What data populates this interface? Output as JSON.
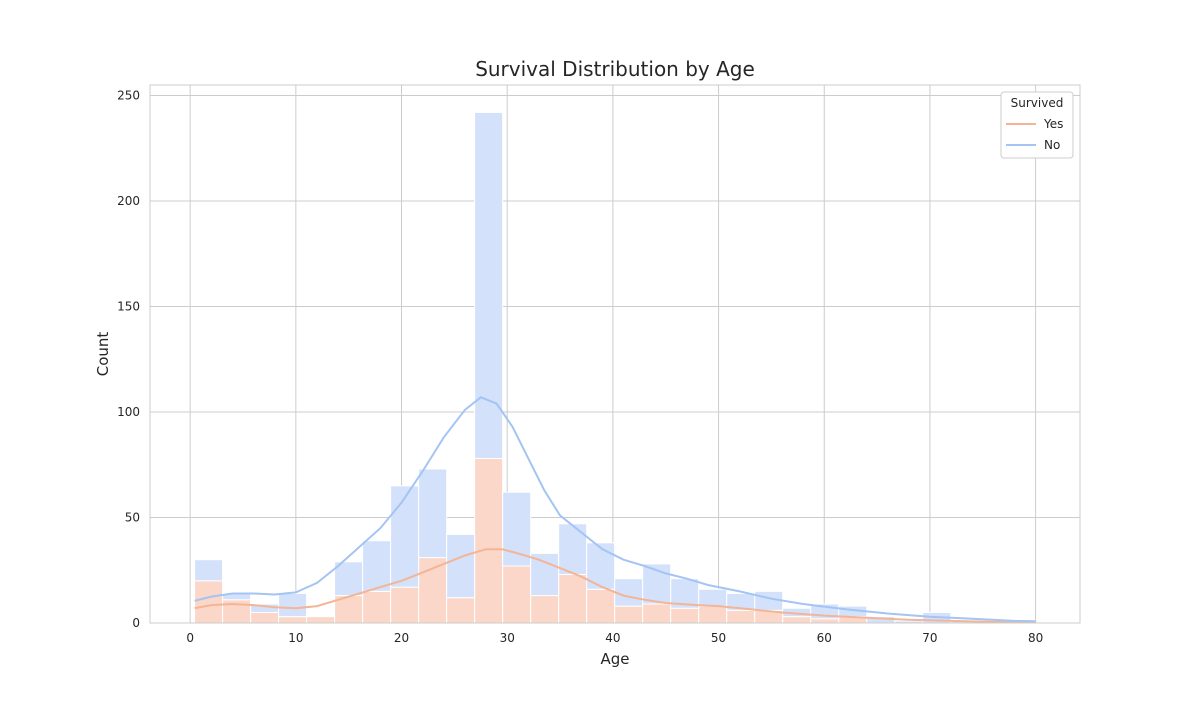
{
  "chart_data": {
    "type": "bar",
    "title": "Survival Distribution by Age",
    "xlabel": "Age",
    "ylabel": "Count",
    "xlim": [
      -3.8,
      84.2
    ],
    "ylim": [
      0,
      255
    ],
    "xticks": [
      0,
      10,
      20,
      30,
      40,
      50,
      60,
      70,
      80
    ],
    "yticks": [
      0,
      50,
      100,
      150,
      200,
      250
    ],
    "grid": true,
    "stacked": true,
    "bin_width": 2.65,
    "bin_edges_start": 0.42,
    "bins": [
      {
        "x0": 0.42,
        "x1": 3.07,
        "yes": 20,
        "no": 10
      },
      {
        "x0": 3.07,
        "x1": 5.72,
        "yes": 11,
        "no": 3
      },
      {
        "x0": 5.72,
        "x1": 8.37,
        "yes": 5,
        "no": 4
      },
      {
        "x0": 8.37,
        "x1": 11.02,
        "yes": 3,
        "no": 11
      },
      {
        "x0": 11.02,
        "x1": 13.67,
        "yes": 3,
        "no": 0
      },
      {
        "x0": 13.67,
        "x1": 16.32,
        "yes": 13,
        "no": 16
      },
      {
        "x0": 16.32,
        "x1": 18.97,
        "yes": 15,
        "no": 24
      },
      {
        "x0": 18.97,
        "x1": 21.62,
        "yes": 17,
        "no": 48
      },
      {
        "x0": 21.62,
        "x1": 24.27,
        "yes": 31,
        "no": 42
      },
      {
        "x0": 24.27,
        "x1": 26.92,
        "yes": 12,
        "no": 30
      },
      {
        "x0": 26.92,
        "x1": 29.57,
        "yes": 78,
        "no": 164
      },
      {
        "x0": 29.57,
        "x1": 32.22,
        "yes": 27,
        "no": 35
      },
      {
        "x0": 32.22,
        "x1": 34.87,
        "yes": 13,
        "no": 20
      },
      {
        "x0": 34.87,
        "x1": 37.52,
        "yes": 23,
        "no": 24
      },
      {
        "x0": 37.52,
        "x1": 40.17,
        "yes": 16,
        "no": 22
      },
      {
        "x0": 40.17,
        "x1": 42.82,
        "yes": 8,
        "no": 13
      },
      {
        "x0": 42.82,
        "x1": 45.47,
        "yes": 9,
        "no": 19
      },
      {
        "x0": 45.47,
        "x1": 48.12,
        "yes": 7,
        "no": 14
      },
      {
        "x0": 48.12,
        "x1": 50.77,
        "yes": 8,
        "no": 8
      },
      {
        "x0": 50.77,
        "x1": 53.42,
        "yes": 6,
        "no": 8
      },
      {
        "x0": 53.42,
        "x1": 56.07,
        "yes": 6,
        "no": 9
      },
      {
        "x0": 56.07,
        "x1": 58.72,
        "yes": 3,
        "no": 4
      },
      {
        "x0": 58.72,
        "x1": 61.37,
        "yes": 2,
        "no": 7
      },
      {
        "x0": 61.37,
        "x1": 64.02,
        "yes": 3,
        "no": 5
      },
      {
        "x0": 64.02,
        "x1": 66.67,
        "yes": 0,
        "no": 3
      },
      {
        "x0": 66.67,
        "x1": 69.32,
        "yes": 0,
        "no": 1
      },
      {
        "x0": 69.32,
        "x1": 71.97,
        "yes": 0,
        "no": 5
      },
      {
        "x0": 71.97,
        "x1": 74.62,
        "yes": 0,
        "no": 1
      },
      {
        "x0": 74.62,
        "x1": 77.27,
        "yes": 0,
        "no": 0
      },
      {
        "x0": 77.27,
        "x1": 79.92,
        "yes": 1,
        "no": 0
      }
    ],
    "series": [
      {
        "name": "Yes",
        "color": "#f4b596",
        "bar_color": "#fad7c8",
        "kde": [
          [
            0.42,
            7
          ],
          [
            2,
            8.5
          ],
          [
            4,
            9
          ],
          [
            6,
            8.5
          ],
          [
            8,
            7.5
          ],
          [
            10,
            7
          ],
          [
            12,
            8
          ],
          [
            14,
            11
          ],
          [
            16,
            14
          ],
          [
            18,
            17
          ],
          [
            20,
            20
          ],
          [
            22,
            24
          ],
          [
            24,
            28
          ],
          [
            26,
            32
          ],
          [
            28,
            35
          ],
          [
            29.5,
            35
          ],
          [
            31,
            33
          ],
          [
            33,
            30
          ],
          [
            35,
            26
          ],
          [
            37,
            22
          ],
          [
            39,
            17
          ],
          [
            41,
            13
          ],
          [
            43,
            11
          ],
          [
            45,
            9.5
          ],
          [
            48,
            8.5
          ],
          [
            50,
            8
          ],
          [
            53,
            6.5
          ],
          [
            56,
            5
          ],
          [
            60,
            3.5
          ],
          [
            64,
            2.5
          ],
          [
            68,
            1.5
          ],
          [
            72,
            1
          ],
          [
            76,
            0.5
          ],
          [
            80,
            0.3
          ]
        ]
      },
      {
        "name": "No",
        "color": "#a4c4f4",
        "bar_color": "#d3e1fb",
        "kde": [
          [
            0.42,
            10.5
          ],
          [
            2,
            12.5
          ],
          [
            4,
            14
          ],
          [
            6,
            14
          ],
          [
            8,
            13.5
          ],
          [
            10,
            14.5
          ],
          [
            12,
            19
          ],
          [
            14,
            27
          ],
          [
            16,
            36
          ],
          [
            18,
            45
          ],
          [
            20,
            57
          ],
          [
            22,
            72
          ],
          [
            24,
            88
          ],
          [
            26,
            101
          ],
          [
            27.5,
            107
          ],
          [
            29,
            104
          ],
          [
            30.5,
            93
          ],
          [
            32,
            78
          ],
          [
            33.5,
            63
          ],
          [
            35,
            51
          ],
          [
            37,
            43
          ],
          [
            39,
            35
          ],
          [
            41,
            30
          ],
          [
            43,
            27
          ],
          [
            45,
            23.5
          ],
          [
            47,
            21
          ],
          [
            49,
            18
          ],
          [
            52,
            15
          ],
          [
            55,
            11.5
          ],
          [
            58,
            9
          ],
          [
            62,
            6.5
          ],
          [
            66,
            4.5
          ],
          [
            70,
            3
          ],
          [
            74,
            2
          ],
          [
            78,
            1
          ],
          [
            80,
            0.8
          ]
        ]
      }
    ],
    "legend": {
      "title": "Survived",
      "position": "top-right",
      "entries": [
        "Yes",
        "No"
      ]
    }
  }
}
